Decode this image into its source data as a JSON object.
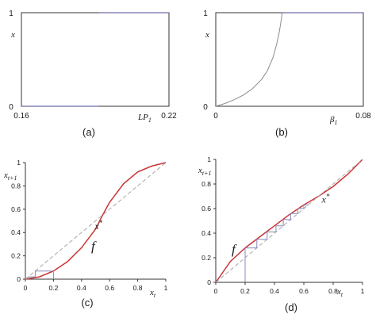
{
  "colors": {
    "axis": "#333333",
    "series_blue": "#6a6aa8",
    "series_gray": "#8c8c8c",
    "map_red": "#cc3333",
    "diag_gray": "#a8a8a8",
    "cobweb": "#8888bb"
  },
  "chart_data": [
    {
      "panel": "a",
      "type": "line",
      "caption": "(a)",
      "xlabel": "LP",
      "xlabel_sub": "1",
      "ylabel": "x",
      "xlim": [
        0.16,
        0.22
      ],
      "ylim": [
        0,
        1
      ],
      "x_ticks": [
        "0.16",
        "0.22"
      ],
      "y_ticks": [
        "0",
        "1"
      ],
      "series": [
        {
          "points": [
            [
              0.16,
              0
            ],
            [
              0.1915,
              0
            ]
          ]
        },
        {
          "points": [
            [
              0.1915,
              1
            ],
            [
              0.22,
              1
            ]
          ]
        }
      ]
    },
    {
      "panel": "b",
      "type": "line",
      "caption": "(b)",
      "xlabel": "β",
      "xlabel_sub": "1",
      "ylabel": "x",
      "xlim": [
        0,
        0.08
      ],
      "ylim": [
        0,
        1
      ],
      "x_ticks": [
        "0",
        "0.08"
      ],
      "y_ticks": [
        "0",
        "1"
      ],
      "series": [
        {
          "points": [
            [
              0,
              0
            ],
            [
              0.005,
              0.03
            ],
            [
              0.01,
              0.07
            ],
            [
              0.015,
              0.12
            ],
            [
              0.02,
              0.19
            ],
            [
              0.025,
              0.29
            ],
            [
              0.028,
              0.38
            ],
            [
              0.031,
              0.52
            ],
            [
              0.033,
              0.66
            ],
            [
              0.0345,
              0.8
            ],
            [
              0.0355,
              0.92
            ],
            [
              0.036,
              1.0
            ],
            [
              0.08,
              1.0
            ]
          ]
        }
      ]
    },
    {
      "panel": "c",
      "type": "line",
      "caption": "(c)",
      "xlabel": "x",
      "xlabel_sub": "t",
      "ylabel": "x",
      "ylabel_sub": "t+1",
      "xlim": [
        0,
        1
      ],
      "ylim": [
        0,
        1
      ],
      "x_ticks": [
        "0",
        "0.2",
        "0.4",
        "0.6",
        "0.8",
        "1"
      ],
      "y_ticks": [
        "0",
        "0.2",
        "0.4",
        "0.6",
        "0.8",
        "1"
      ],
      "annotations": {
        "fixed_point": "x",
        "fixed_point_sup": "*",
        "map": "f"
      },
      "fixed_point": [
        0.55,
        0.55
      ],
      "series": [
        {
          "role": "map f",
          "points": [
            [
              0,
              0
            ],
            [
              0.1,
              0.02
            ],
            [
              0.2,
              0.07
            ],
            [
              0.3,
              0.15
            ],
            [
              0.4,
              0.27
            ],
            [
              0.5,
              0.43
            ],
            [
              0.55,
              0.55
            ],
            [
              0.6,
              0.66
            ],
            [
              0.7,
              0.82
            ],
            [
              0.8,
              0.92
            ],
            [
              0.9,
              0.97
            ],
            [
              1,
              1
            ]
          ]
        },
        {
          "role": "diagonal",
          "points": [
            [
              0,
              0
            ],
            [
              1,
              1
            ]
          ]
        },
        {
          "role": "cobweb",
          "points": [
            [
              0.2,
              0
            ],
            [
              0.2,
              0.07
            ],
            [
              0.07,
              0.07
            ],
            [
              0.07,
              0.02
            ],
            [
              0.02,
              0.02
            ]
          ]
        }
      ]
    },
    {
      "panel": "d",
      "type": "line",
      "caption": "(d)",
      "xlabel": "x",
      "xlabel_sub": "t",
      "ylabel": "x",
      "ylabel_sub": "t+1",
      "xlim": [
        0,
        1
      ],
      "ylim": [
        0,
        1
      ],
      "x_ticks": [
        "0",
        "0.2",
        "0.4",
        "0.6",
        "0.8",
        "1"
      ],
      "y_ticks": [
        "0",
        "0.2",
        "0.4",
        "0.6",
        "0.8",
        "1"
      ],
      "annotations": {
        "fixed_point": "x",
        "fixed_point_sup": "*",
        "map": "f"
      },
      "fixed_point": [
        0.7,
        0.7
      ],
      "series": [
        {
          "role": "map f",
          "points": [
            [
              0,
              0
            ],
            [
              0.1,
              0.17
            ],
            [
              0.2,
              0.28
            ],
            [
              0.3,
              0.37
            ],
            [
              0.4,
              0.46
            ],
            [
              0.5,
              0.55
            ],
            [
              0.6,
              0.63
            ],
            [
              0.7,
              0.7
            ],
            [
              0.8,
              0.78
            ],
            [
              0.9,
              0.88
            ],
            [
              1,
              1
            ]
          ]
        },
        {
          "role": "diagonal",
          "points": [
            [
              0,
              0
            ],
            [
              1,
              1
            ]
          ]
        },
        {
          "role": "cobweb",
          "points": [
            [
              0.2,
              0
            ],
            [
              0.2,
              0.28
            ],
            [
              0.28,
              0.28
            ],
            [
              0.28,
              0.35
            ],
            [
              0.35,
              0.35
            ],
            [
              0.35,
              0.41
            ],
            [
              0.41,
              0.41
            ],
            [
              0.41,
              0.46
            ],
            [
              0.46,
              0.46
            ],
            [
              0.46,
              0.51
            ],
            [
              0.51,
              0.51
            ],
            [
              0.51,
              0.56
            ],
            [
              0.56,
              0.56
            ],
            [
              0.56,
              0.6
            ],
            [
              0.6,
              0.6
            ],
            [
              0.6,
              0.63
            ],
            [
              0.63,
              0.63
            ]
          ]
        }
      ]
    }
  ]
}
